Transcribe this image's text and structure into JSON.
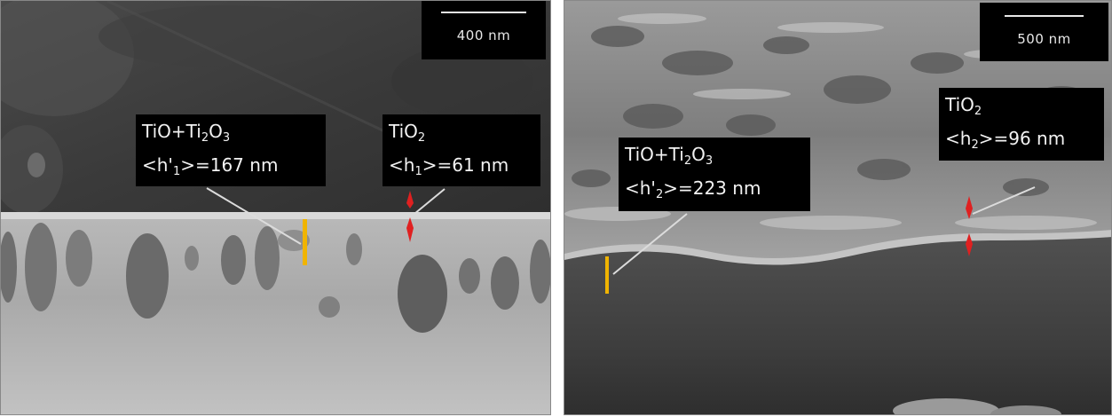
{
  "panels": [
    {
      "scale_bar": "400 nm",
      "labels": [
        {
          "name": "TiO+Ti",
          "sub": "2",
          "mid": "O",
          "sub2": "3",
          "value_prefix": "<h'",
          "value_sub": "1",
          "value_suffix": ">=167 nm"
        },
        {
          "name": "TiO",
          "sub": "2",
          "value_prefix": "<h",
          "value_sub": "1",
          "value_suffix": ">=61 nm"
        }
      ]
    },
    {
      "scale_bar": "500 nm",
      "labels": [
        {
          "name": "TiO+Ti",
          "sub": "2",
          "mid": "O",
          "sub2": "3",
          "value_prefix": "<h'",
          "value_sub": "2",
          "value_suffix": ">=223 nm"
        },
        {
          "name": "TiO",
          "sub": "2",
          "value_prefix": "<h",
          "value_sub": "2",
          "value_suffix": ">=96 nm"
        }
      ]
    }
  ],
  "colors": {
    "thickness_marker_yellow": "#f0b400",
    "thickness_marker_red": "#e02020",
    "pointer_line": "#dddddd",
    "label_bg": "#000000"
  }
}
